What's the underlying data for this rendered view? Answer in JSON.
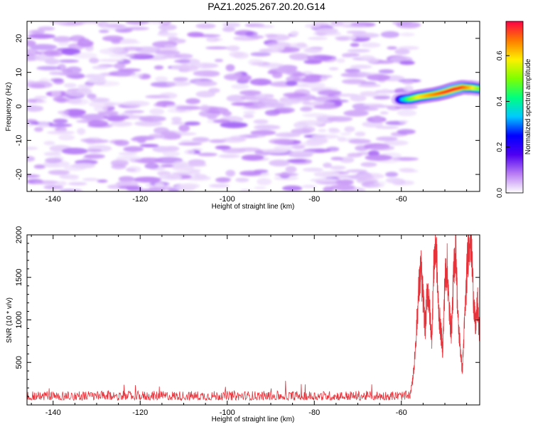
{
  "title": "PAZ1.2025.267.20.20.G14",
  "chart_data": [
    {
      "type": "heatmap",
      "xlabel": "Height of straight line (km)",
      "ylabel": "Frequency (Hz)",
      "xlim": [
        -146,
        -42
      ],
      "ylim": [
        -25,
        25
      ],
      "xticks": [
        -140,
        -120,
        -100,
        -80,
        -60
      ],
      "yticks": [
        -20,
        -10,
        0,
        10,
        20
      ],
      "colorbar": {
        "label": "Normalized spectral amplitude",
        "range": [
          0,
          0.75
        ],
        "ticks": [
          0.0,
          0.2,
          0.4,
          0.6
        ],
        "colors": [
          "#ffffff",
          "#b97cf4",
          "#4f00f2",
          "#0000ff",
          "#00c9ff",
          "#00ff7f",
          "#7fff00",
          "#ffef00",
          "#ff7a00",
          "#ff0044"
        ]
      },
      "signal_ridge": {
        "x": [
          -60,
          -58,
          -56,
          -54,
          -52,
          -50,
          -48,
          -46,
          -44,
          -42
        ],
        "y": [
          2.0,
          2.2,
          2.8,
          3.2,
          3.6,
          4.2,
          5.0,
          5.6,
          5.5,
          5.2
        ],
        "amplitude": [
          0.3,
          0.48,
          0.58,
          0.62,
          0.66,
          0.7,
          0.72,
          0.7,
          0.62,
          0.5
        ]
      },
      "noise_region": {
        "x": [
          -146,
          -58
        ],
        "amplitude_range": [
          0.0,
          0.14
        ]
      }
    },
    {
      "type": "line",
      "xlabel": "Height of straight line (km)",
      "ylabel": "SNR (10 * v/v)",
      "xlim": [
        -146,
        -42
      ],
      "ylim": [
        0,
        2000
      ],
      "xticks": [
        -140,
        -120,
        -100,
        -80,
        -60
      ],
      "yticks": [
        500,
        1000,
        1500,
        2000
      ],
      "color": "#e8323a",
      "series": [
        {
          "noise_level": {
            "x": [
              -146,
              -58
            ],
            "baseline": 100,
            "spread": 110
          },
          "x": [
            -58,
            -57.5,
            -57,
            -56.5,
            -56,
            -55.5,
            -55,
            -54.5,
            -54,
            -53.5,
            -53,
            -52.5,
            -52,
            -51.5,
            -51,
            -50.5,
            -50,
            -49.5,
            -49,
            -48.5,
            -48,
            -47.5,
            -47,
            -46.5,
            -46,
            -45.5,
            -45,
            -44.5,
            -44,
            -43.5,
            -43,
            -42.5,
            -42
          ],
          "y": [
            120,
            250,
            500,
            900,
            1350,
            1600,
            1250,
            900,
            1400,
            1100,
            800,
            1700,
            1900,
            1150,
            900,
            650,
            1450,
            1650,
            1100,
            850,
            1500,
            1900,
            1000,
            700,
            400,
            950,
            1500,
            1950,
            2000,
            1350,
            900,
            1200,
            750
          ]
        }
      ]
    }
  ]
}
